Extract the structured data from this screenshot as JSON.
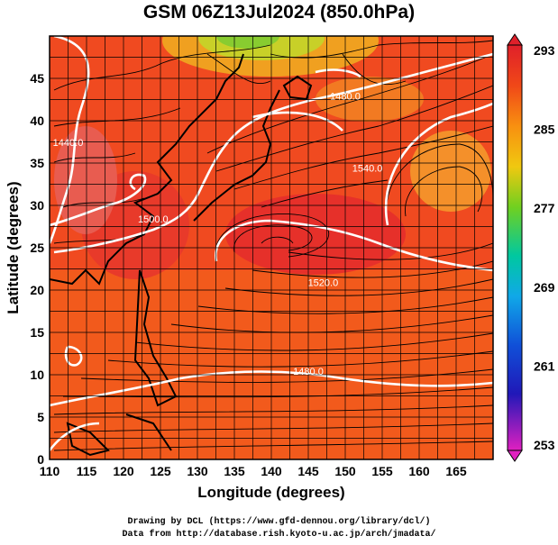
{
  "title": "GSM 06Z13Jul2024 (850.0hPa)",
  "xlabel": "Longitude (degrees)",
  "ylabel": "Latitude  (degrees)",
  "credits": {
    "line1": "Drawing by DCL (https://www.gfd-dennou.org/library/dcl/)",
    "line2": "Data from http://database.rish.kyoto-u.ac.jp/arch/jmadata/"
  },
  "chart_data": {
    "type": "heatmap",
    "xlim": [
      110,
      170
    ],
    "ylim": [
      0,
      50
    ],
    "xticks": [
      110,
      115,
      120,
      125,
      130,
      135,
      140,
      145,
      150,
      155,
      160,
      165
    ],
    "yticks": [
      0,
      5,
      10,
      15,
      20,
      25,
      30,
      35,
      40,
      45
    ],
    "grid": true,
    "colorbar": {
      "ticks": [
        293,
        285,
        277,
        269,
        261,
        253
      ],
      "colors": [
        "#e0202a",
        "#f06018",
        "#f8a010",
        "#e8d010",
        "#60d020",
        "#00c8a0",
        "#10a8e8",
        "#1050d8",
        "#2018b8",
        "#a010b0",
        "#e020c0"
      ]
    },
    "contour_labels": [
      {
        "text": "1440.0",
        "x": 112.5,
        "y": 37
      },
      {
        "text": "1500.0",
        "x": 124,
        "y": 28
      },
      {
        "text": "1520.0",
        "x": 147,
        "y": 20.5
      },
      {
        "text": "1480.0",
        "x": 145,
        "y": 10
      },
      {
        "text": "1540.0",
        "x": 153,
        "y": 34
      },
      {
        "text": "1480.0",
        "x": 150,
        "y": 42.5
      }
    ]
  }
}
